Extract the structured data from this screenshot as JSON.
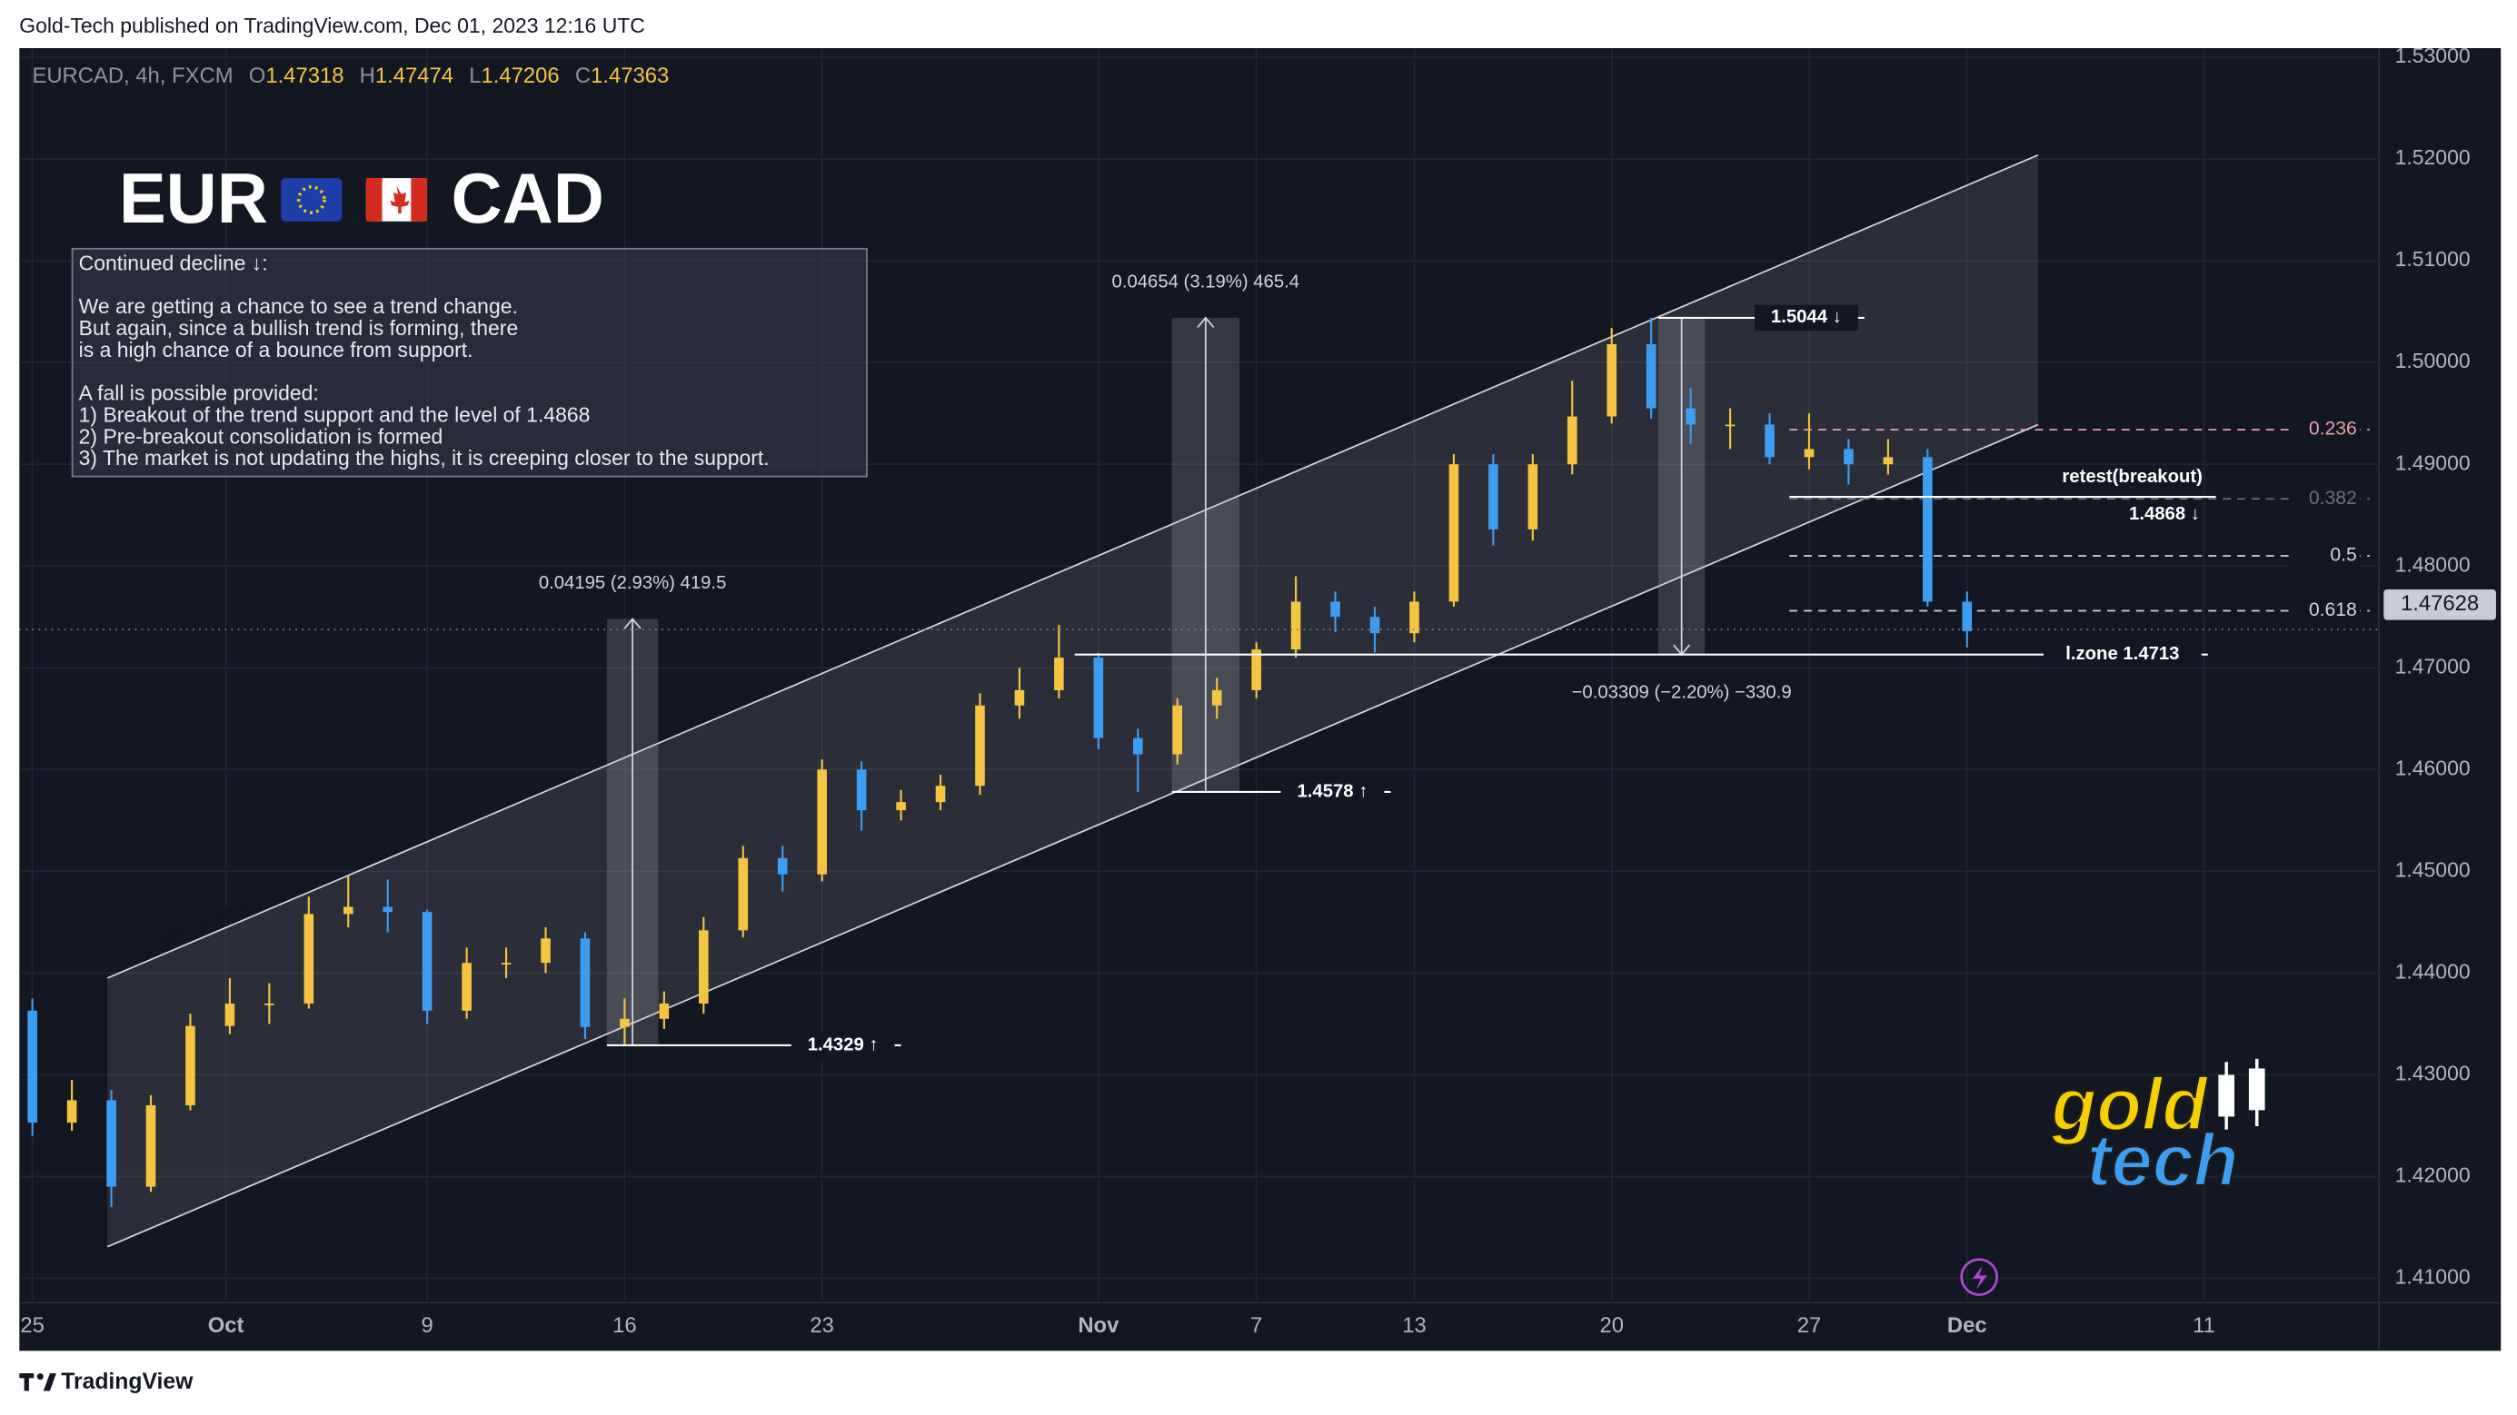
{
  "header": {
    "text": "Gold-Tech published on TradingView.com, Dec 01, 2023 12:16 UTC"
  },
  "legend": {
    "symbol": "EURCAD, 4h, FXCM",
    "o_label": "O",
    "o": "1.47318",
    "h_label": "H",
    "h": "1.47474",
    "l_label": "L",
    "l": "1.47206",
    "c_label": "C",
    "c": "1.47363"
  },
  "title": {
    "left": "EUR",
    "right": "CAD"
  },
  "note": {
    "heading": "Continued decline ↓:",
    "paragraph1": [
      "We are getting a chance to see a trend change.",
      "But again, since a bullish trend is forming, there",
      "is a high chance of a bounce from support."
    ],
    "paragraph2": [
      "A fall is possible provided:",
      "1) Breakout of the trend support and the level of 1.4868",
      "2) Pre-breakout consolidation is formed",
      "3) The market is not updating the highs, it is creeping closer to the support."
    ]
  },
  "logo": {
    "top": "gold",
    "bottom": "tech"
  },
  "footer": {
    "brand": "TradingView"
  },
  "chart_data": {
    "type": "candlestick",
    "up_color": "#f5c542",
    "down_color": "#3d9df2",
    "xlim": [
      -0.33,
      59.43
    ],
    "ylim": [
      1.4076,
      1.5309
    ],
    "grid": true,
    "xticks": [
      {
        "value": 0,
        "label": "25"
      },
      {
        "value": 4.9,
        "label": "Oct"
      },
      {
        "value": 10,
        "label": "9"
      },
      {
        "value": 15,
        "label": "16"
      },
      {
        "value": 20,
        "label": "23"
      },
      {
        "value": 27,
        "label": "Nov"
      },
      {
        "value": 31,
        "label": "7"
      },
      {
        "value": 35,
        "label": "13"
      },
      {
        "value": 40,
        "label": "20"
      },
      {
        "value": 45,
        "label": "27"
      },
      {
        "value": 49,
        "label": "Dec"
      },
      {
        "value": 55,
        "label": "11"
      }
    ],
    "yticks": [
      {
        "value": 1.41,
        "label": "1.41000"
      },
      {
        "value": 1.42,
        "label": "1.42000"
      },
      {
        "value": 1.43,
        "label": "1.43000"
      },
      {
        "value": 1.44,
        "label": "1.44000"
      },
      {
        "value": 1.45,
        "label": "1.45000"
      },
      {
        "value": 1.46,
        "label": "1.46000"
      },
      {
        "value": 1.47,
        "label": "1.47000"
      },
      {
        "value": 1.48,
        "label": "1.48000"
      },
      {
        "value": 1.49,
        "label": "1.49000"
      },
      {
        "value": 1.5,
        "label": "1.50000"
      },
      {
        "value": 1.51,
        "label": "1.51000"
      },
      {
        "value": 1.52,
        "label": "1.52000"
      },
      {
        "value": 1.53,
        "label": "1.53000"
      }
    ],
    "x": [
      0,
      1,
      2,
      3,
      4,
      5,
      6,
      7,
      8,
      9,
      10,
      11,
      12,
      13,
      14,
      15,
      16,
      17,
      18,
      19,
      20,
      21,
      22,
      23,
      24,
      25,
      26,
      27,
      28,
      29,
      30,
      31,
      32,
      33,
      34,
      35,
      36,
      37,
      38,
      39,
      40,
      41,
      42,
      43,
      44,
      45,
      46,
      47,
      48,
      49
    ],
    "open": [
      1.4363,
      1.4253,
      1.4275,
      1.419,
      1.427,
      1.4348,
      1.437,
      1.437,
      1.4458,
      1.4465,
      1.446,
      1.4363,
      1.441,
      1.441,
      1.4434,
      1.4347,
      1.4355,
      1.437,
      1.4442,
      1.4513,
      1.4497,
      1.46,
      1.456,
      1.4568,
      1.4584,
      1.4663,
      1.4678,
      1.471,
      1.4631,
      1.4615,
      1.4663,
      1.4678,
      1.4718,
      1.4765,
      1.475,
      1.4734,
      1.4765,
      1.49,
      1.4836,
      1.49,
      1.4947,
      1.5018,
      1.4955,
      1.4939,
      1.4939,
      1.4907,
      1.4915,
      1.49,
      1.4907,
      1.4765
    ],
    "high": [
      1.4375,
      1.4295,
      1.4285,
      1.428,
      1.436,
      1.4395,
      1.439,
      1.4475,
      1.4495,
      1.4492,
      1.4462,
      1.4425,
      1.4425,
      1.4445,
      1.444,
      1.4375,
      1.4382,
      1.4455,
      1.4525,
      1.4525,
      1.461,
      1.4608,
      1.458,
      1.4595,
      1.4675,
      1.47,
      1.4742,
      1.4715,
      1.464,
      1.467,
      1.469,
      1.4725,
      1.479,
      1.4775,
      1.476,
      1.4775,
      1.491,
      1.491,
      1.491,
      1.4982,
      1.5034,
      1.5044,
      1.4975,
      1.4955,
      1.495,
      1.495,
      1.4925,
      1.4925,
      1.4915,
      1.4775
    ],
    "low": [
      1.424,
      1.4245,
      1.417,
      1.4185,
      1.4265,
      1.434,
      1.435,
      1.4365,
      1.4445,
      1.444,
      1.435,
      1.4355,
      1.4395,
      1.44,
      1.4335,
      1.4329,
      1.4345,
      1.436,
      1.4435,
      1.448,
      1.449,
      1.454,
      1.455,
      1.456,
      1.4575,
      1.465,
      1.467,
      1.462,
      1.4578,
      1.4605,
      1.465,
      1.467,
      1.471,
      1.4735,
      1.4715,
      1.4725,
      1.476,
      1.482,
      1.4825,
      1.489,
      1.494,
      1.4945,
      1.492,
      1.4915,
      1.49,
      1.4895,
      1.488,
      1.489,
      1.476,
      1.472
    ],
    "close": [
      1.4253,
      1.4275,
      1.419,
      1.427,
      1.4348,
      1.437,
      1.437,
      1.4458,
      1.4465,
      1.446,
      1.4363,
      1.441,
      1.441,
      1.4434,
      1.4347,
      1.4355,
      1.437,
      1.4442,
      1.4513,
      1.4497,
      1.46,
      1.456,
      1.4568,
      1.4584,
      1.4663,
      1.4678,
      1.471,
      1.4631,
      1.4615,
      1.4663,
      1.4678,
      1.4718,
      1.4765,
      1.475,
      1.4734,
      1.4765,
      1.49,
      1.4836,
      1.49,
      1.4947,
      1.5018,
      1.4955,
      1.4939,
      1.4939,
      1.4907,
      1.4915,
      1.49,
      1.4907,
      1.4765,
      1.4736
    ],
    "channel": {
      "label": "bullish channel",
      "x": [
        1.9,
        50.8
      ],
      "lower": [
        1.4131,
        1.4939
      ],
      "upper": [
        1.4395,
        1.5204
      ]
    },
    "measures": [
      {
        "x": [
          14.55,
          15.85
        ],
        "from": 1.4329,
        "to": 1.4748,
        "label": "0.04195 (2.93%) 419.5"
      },
      {
        "x": [
          28.86,
          30.57
        ],
        "from": 1.4578,
        "to": 1.5044,
        "label": "0.04654 (3.19%) 465.4"
      },
      {
        "x": [
          41.18,
          42.36
        ],
        "from": 1.5044,
        "to": 1.4713,
        "label": "−0.03309 (−2.20%) −330.9"
      }
    ],
    "levels": [
      {
        "value": 1.4329,
        "label": "1.4329 ↑",
        "x": [
          14.55,
          22.0
        ]
      },
      {
        "value": 1.4578,
        "label": "1.4578 ↑",
        "x": [
          28.86,
          34.4
        ]
      },
      {
        "value": 1.5044,
        "label": "1.5044 ↓",
        "x": [
          41.18,
          46.4
        ]
      },
      {
        "value": 1.4713,
        "label": "l.zone 1.4713",
        "x": [
          26.4,
          55.1
        ]
      },
      {
        "value": 1.4868,
        "label": "1.4868 ↓",
        "title": "retest(breakout)",
        "x": [
          44.5,
          55.3
        ]
      }
    ],
    "fib": {
      "x": [
        44.5,
        59.2
      ],
      "levels": [
        {
          "value": 1.4934,
          "label": "0.236",
          "color": "#e8a0a8"
        },
        {
          "value": 1.4866,
          "label": "0.382",
          "color": "#6b6f7a"
        },
        {
          "value": 1.481,
          "label": "0.5",
          "color": "#d1d4dc"
        },
        {
          "value": 1.4756,
          "label": "0.618",
          "color": "#d1d4dc"
        }
      ]
    },
    "last_price": {
      "value": 1.47628,
      "label": "1.47628"
    }
  }
}
